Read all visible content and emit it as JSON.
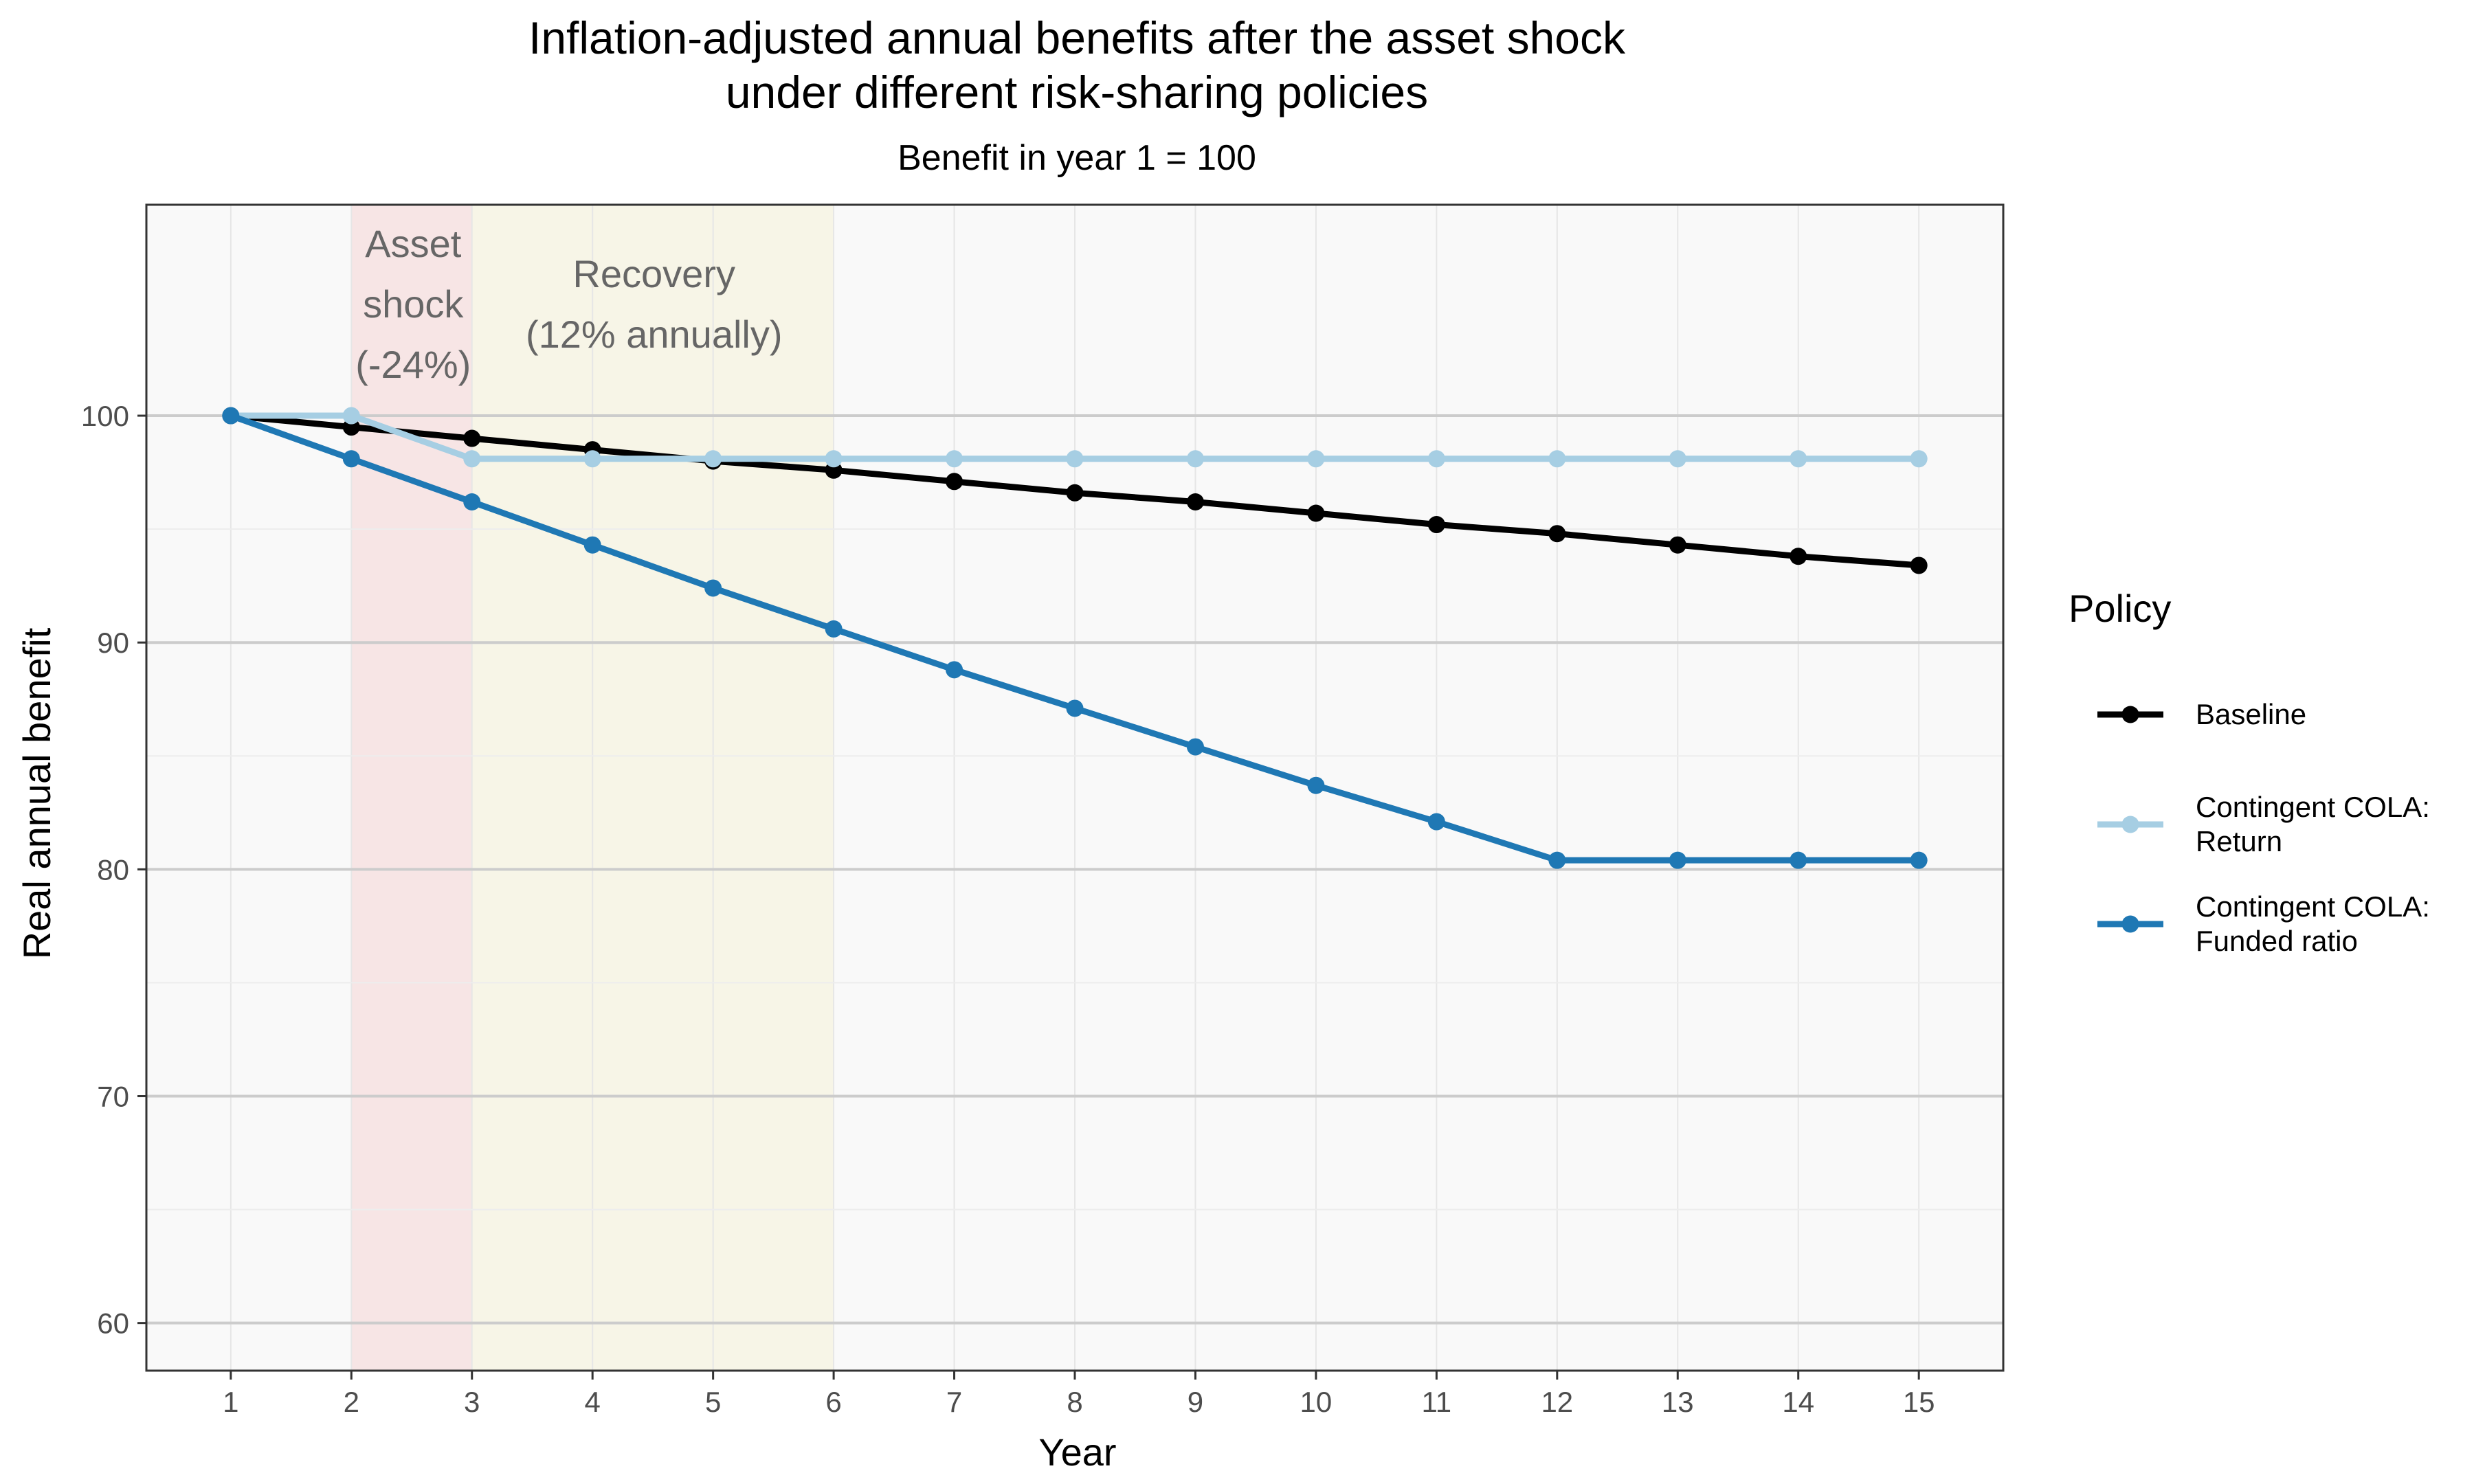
{
  "chart_data": {
    "type": "line",
    "title_line1": "Inflation-adjusted annual benefits after the asset shock",
    "title_line2": "under different risk-sharing policies",
    "subtitle": "Benefit in year 1 = 100",
    "xlabel": "Year",
    "ylabel": "Real annual benefit",
    "x": [
      1,
      2,
      3,
      4,
      5,
      6,
      7,
      8,
      9,
      10,
      11,
      12,
      13,
      14,
      15
    ],
    "xlim": [
      0.3,
      15.7
    ],
    "ylim": [
      57.9,
      109.3
    ],
    "y_ticks": [
      60,
      70,
      80,
      90,
      100
    ],
    "grid": true,
    "legend": {
      "title": "Policy",
      "placement": "right"
    },
    "series": [
      {
        "name": "Baseline",
        "name_lines": [
          "Baseline"
        ],
        "color": "#000000",
        "values": [
          100,
          99.5,
          99.0,
          98.5,
          98.0,
          97.6,
          97.1,
          96.6,
          96.2,
          95.7,
          95.2,
          94.8,
          94.3,
          93.8,
          93.4
        ]
      },
      {
        "name": "Contingent COLA: Return",
        "name_lines": [
          "Contingent COLA:",
          "Return"
        ],
        "color": "#a6cee3",
        "values": [
          100,
          100,
          98.1,
          98.1,
          98.1,
          98.1,
          98.1,
          98.1,
          98.1,
          98.1,
          98.1,
          98.1,
          98.1,
          98.1,
          98.1
        ]
      },
      {
        "name": "Contingent COLA: Funded ratio",
        "name_lines": [
          "Contingent COLA:",
          "Funded ratio"
        ],
        "color": "#1f78b4",
        "values": [
          100,
          98.1,
          96.2,
          94.3,
          92.4,
          90.6,
          88.8,
          87.1,
          85.4,
          83.7,
          82.1,
          80.4,
          80.4,
          80.4,
          80.4
        ]
      }
    ],
    "shaded_regions": [
      {
        "x_start": 2,
        "x_end": 3,
        "color": "#f4cccc",
        "label_lines": [
          "Asset",
          "shock",
          "(-24%)"
        ]
      },
      {
        "x_start": 3,
        "x_end": 6,
        "color": "#f5f2d8",
        "label_lines": [
          "Recovery",
          "(12% annually)"
        ]
      }
    ]
  }
}
